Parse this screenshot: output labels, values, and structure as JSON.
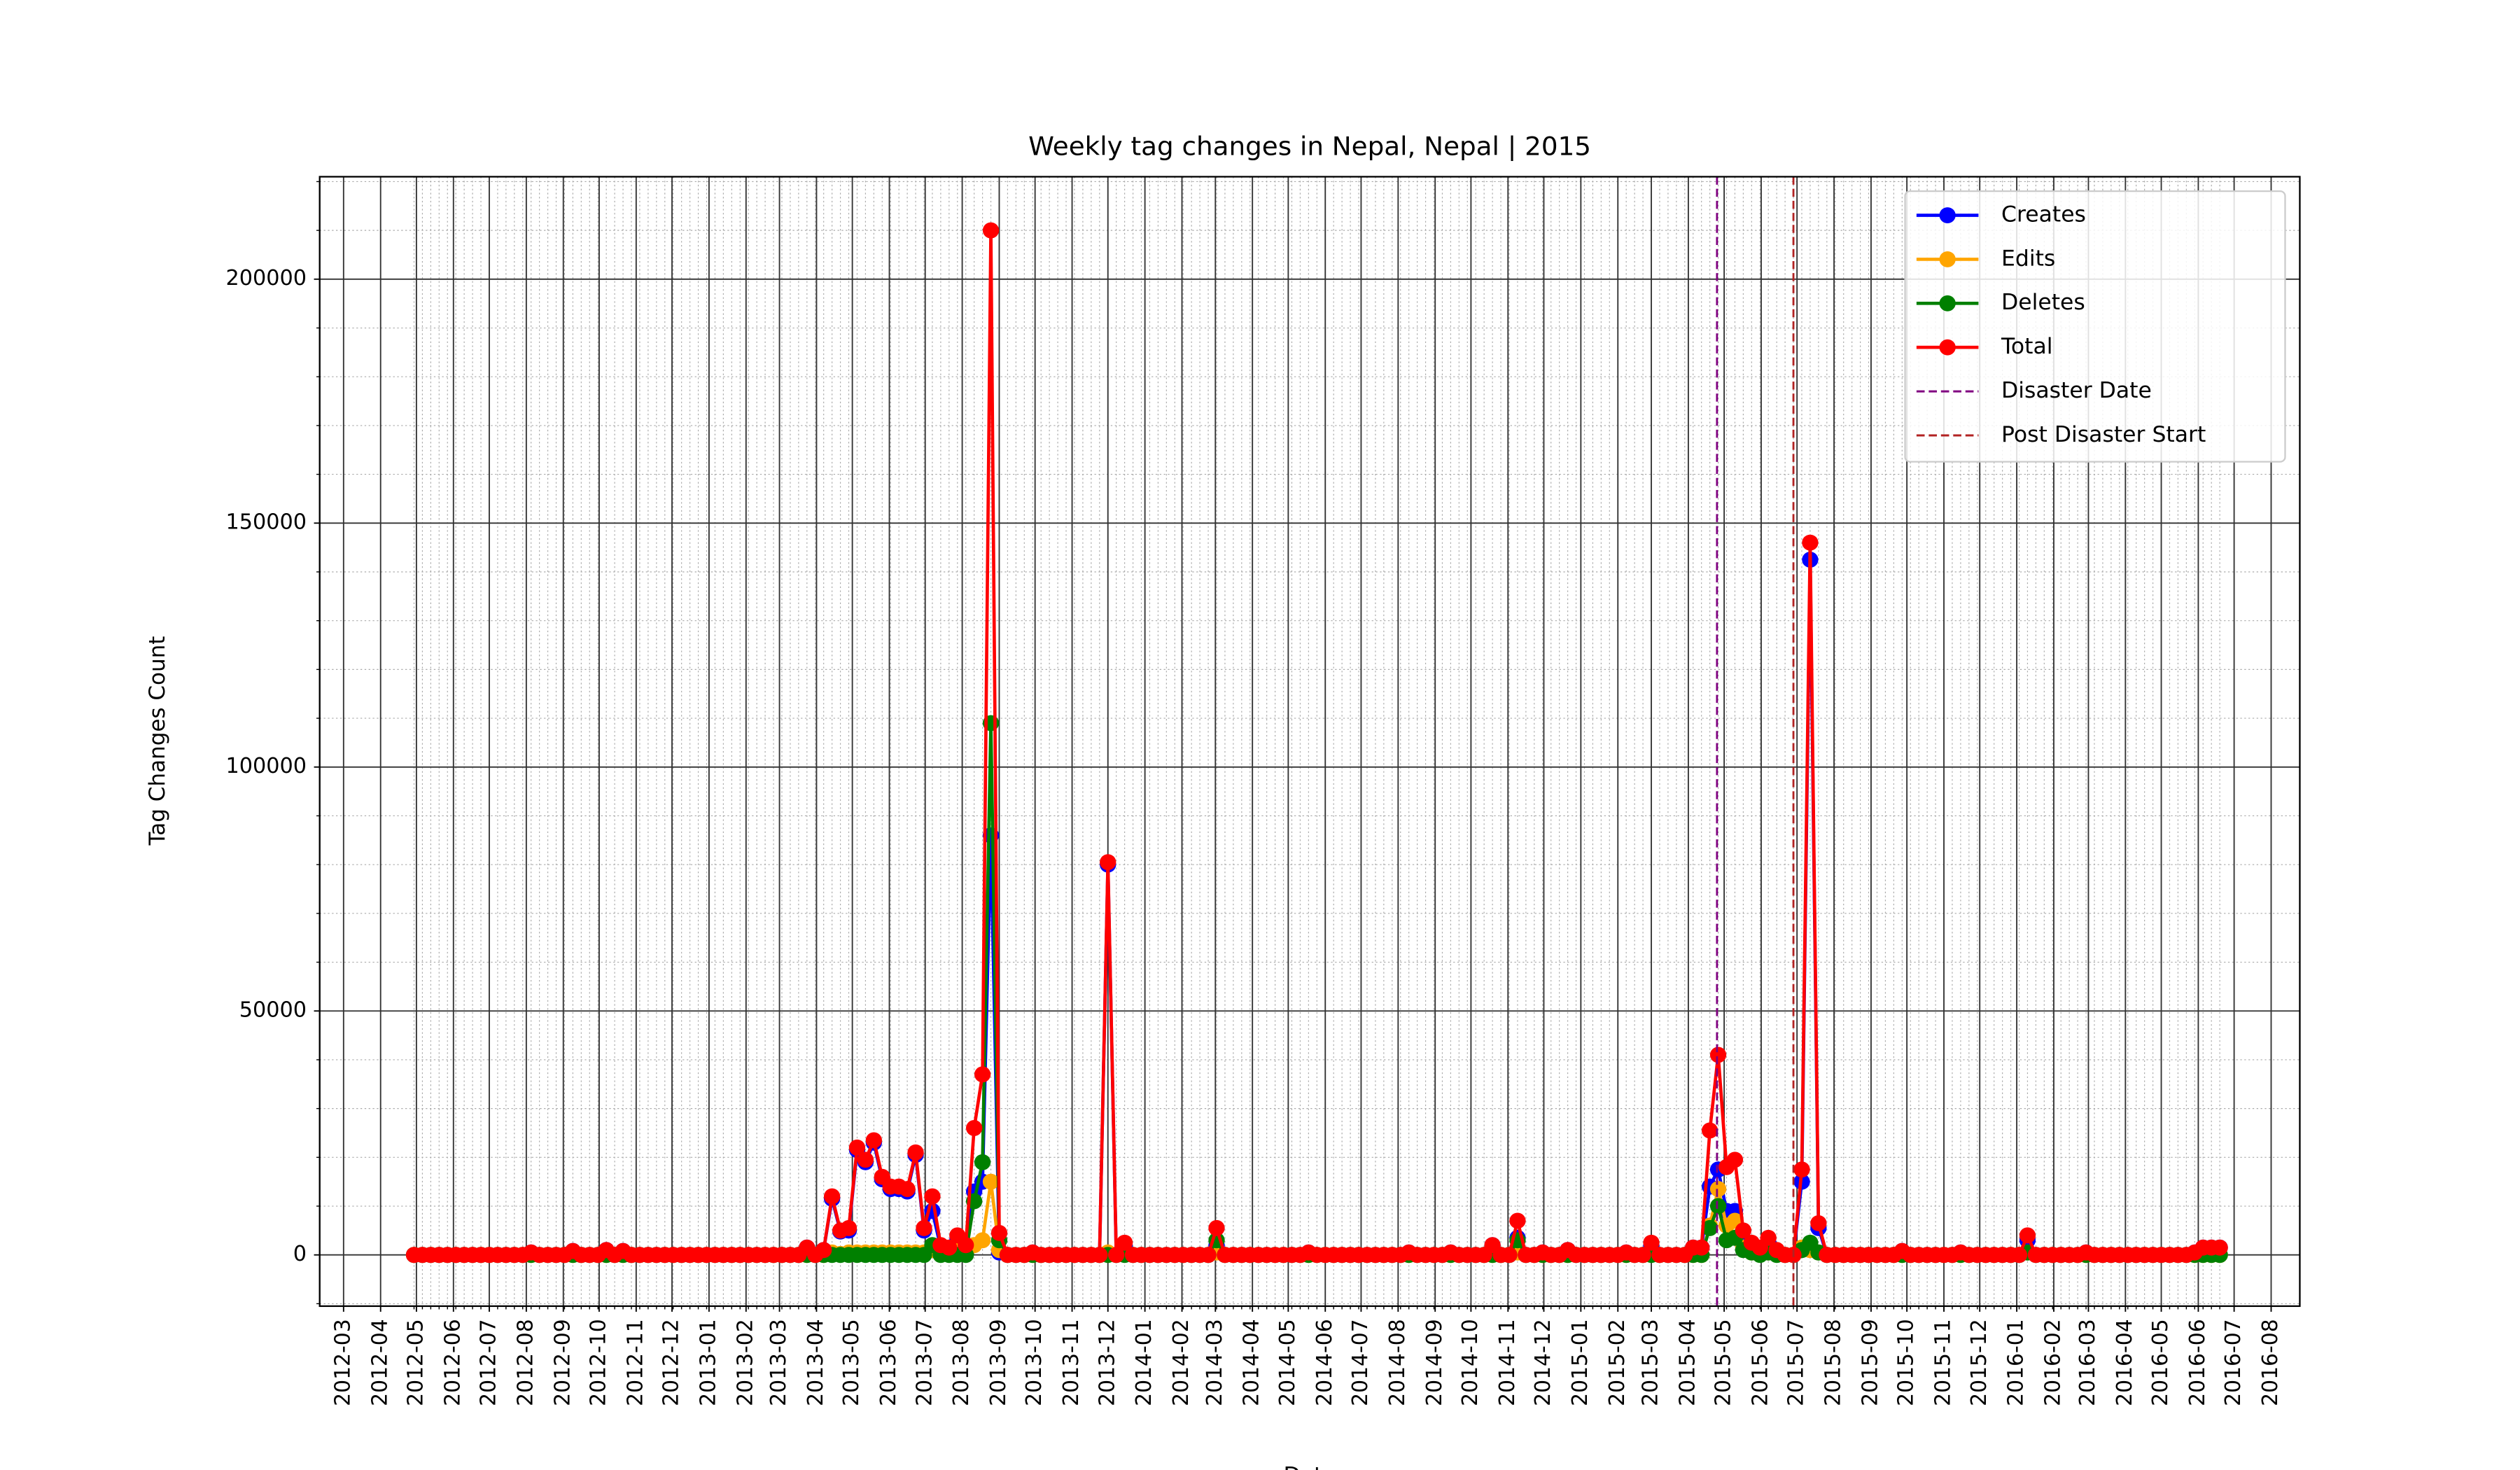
{
  "chart_data": {
    "type": "line",
    "title": "Weekly tag changes in Nepal, Nepal | 2015",
    "x_label": "Date",
    "y_label": "Tag Changes Count",
    "x": [
      "2012-04-29",
      "2012-05-06",
      "2012-05-13",
      "2012-05-20",
      "2012-05-27",
      "2012-06-03",
      "2012-06-10",
      "2012-06-17",
      "2012-06-24",
      "2012-07-01",
      "2012-07-08",
      "2012-07-15",
      "2012-07-22",
      "2012-07-29",
      "2012-08-05",
      "2012-08-12",
      "2012-08-19",
      "2012-08-26",
      "2012-09-02",
      "2012-09-09",
      "2012-09-16",
      "2012-09-23",
      "2012-09-30",
      "2012-10-07",
      "2012-10-14",
      "2012-10-21",
      "2012-10-28",
      "2012-11-04",
      "2012-11-11",
      "2012-11-18",
      "2012-11-25",
      "2012-12-02",
      "2012-12-09",
      "2012-12-16",
      "2012-12-23",
      "2012-12-30",
      "2013-01-06",
      "2013-01-13",
      "2013-01-20",
      "2013-01-27",
      "2013-02-03",
      "2013-02-10",
      "2013-02-17",
      "2013-02-24",
      "2013-03-03",
      "2013-03-10",
      "2013-03-17",
      "2013-03-24",
      "2013-03-31",
      "2013-04-07",
      "2013-04-14",
      "2013-04-21",
      "2013-04-28",
      "2013-05-05",
      "2013-05-12",
      "2013-05-19",
      "2013-05-26",
      "2013-06-02",
      "2013-06-09",
      "2013-06-16",
      "2013-06-23",
      "2013-06-30",
      "2013-07-07",
      "2013-07-14",
      "2013-07-21",
      "2013-07-28",
      "2013-08-04",
      "2013-08-11",
      "2013-08-18",
      "2013-08-25",
      "2013-09-01",
      "2013-09-08",
      "2013-09-15",
      "2013-09-22",
      "2013-09-29",
      "2013-10-06",
      "2013-10-13",
      "2013-10-20",
      "2013-10-27",
      "2013-11-03",
      "2013-11-10",
      "2013-11-17",
      "2013-11-24",
      "2013-12-01",
      "2013-12-08",
      "2013-12-15",
      "2013-12-22",
      "2013-12-29",
      "2014-01-05",
      "2014-01-12",
      "2014-01-19",
      "2014-01-26",
      "2014-02-02",
      "2014-02-09",
      "2014-02-16",
      "2014-02-23",
      "2014-03-02",
      "2014-03-09",
      "2014-03-16",
      "2014-03-23",
      "2014-03-30",
      "2014-04-06",
      "2014-04-13",
      "2014-04-20",
      "2014-04-27",
      "2014-05-04",
      "2014-05-11",
      "2014-05-18",
      "2014-05-25",
      "2014-06-01",
      "2014-06-08",
      "2014-06-15",
      "2014-06-22",
      "2014-06-29",
      "2014-07-06",
      "2014-07-13",
      "2014-07-20",
      "2014-07-27",
      "2014-08-03",
      "2014-08-10",
      "2014-08-17",
      "2014-08-24",
      "2014-08-31",
      "2014-09-07",
      "2014-09-14",
      "2014-09-21",
      "2014-09-28",
      "2014-10-05",
      "2014-10-12",
      "2014-10-19",
      "2014-10-26",
      "2014-11-02",
      "2014-11-09",
      "2014-11-16",
      "2014-11-23",
      "2014-11-30",
      "2014-12-07",
      "2014-12-14",
      "2014-12-21",
      "2014-12-28",
      "2015-01-04",
      "2015-01-11",
      "2015-01-18",
      "2015-01-25",
      "2015-02-01",
      "2015-02-08",
      "2015-02-15",
      "2015-02-22",
      "2015-03-01",
      "2015-03-08",
      "2015-03-15",
      "2015-03-22",
      "2015-03-29",
      "2015-04-05",
      "2015-04-12",
      "2015-04-19",
      "2015-04-26",
      "2015-05-03",
      "2015-05-10",
      "2015-05-17",
      "2015-05-24",
      "2015-05-31",
      "2015-06-07",
      "2015-06-14",
      "2015-06-21",
      "2015-06-28",
      "2015-07-05",
      "2015-07-12",
      "2015-07-19",
      "2015-07-26",
      "2015-08-02",
      "2015-08-09",
      "2015-08-16",
      "2015-08-23",
      "2015-08-30",
      "2015-09-06",
      "2015-09-13",
      "2015-09-20",
      "2015-09-27",
      "2015-10-04",
      "2015-10-11",
      "2015-10-18",
      "2015-10-25",
      "2015-11-01",
      "2015-11-08",
      "2015-11-15",
      "2015-11-22",
      "2015-11-29",
      "2015-12-06",
      "2015-12-13",
      "2015-12-20",
      "2015-12-27",
      "2016-01-03",
      "2016-01-10",
      "2016-01-17",
      "2016-01-24",
      "2016-01-31",
      "2016-02-07",
      "2016-02-14",
      "2016-02-21",
      "2016-02-28",
      "2016-03-06",
      "2016-03-13",
      "2016-03-20",
      "2016-03-27",
      "2016-04-03",
      "2016-04-10",
      "2016-04-17",
      "2016-04-24",
      "2016-05-01",
      "2016-05-08",
      "2016-05-15",
      "2016-05-22",
      "2016-05-29",
      "2016-06-05",
      "2016-06-12",
      "2016-06-19"
    ],
    "series": [
      {
        "name": "Creates",
        "color": "blue",
        "values": [
          0,
          0,
          0,
          0,
          0,
          0,
          0,
          0,
          0,
          0,
          0,
          0,
          0,
          0,
          500,
          0,
          0,
          0,
          0,
          800,
          0,
          0,
          0,
          1000,
          0,
          800,
          0,
          0,
          0,
          0,
          0,
          0,
          0,
          0,
          0,
          0,
          0,
          0,
          0,
          0,
          0,
          0,
          0,
          0,
          0,
          0,
          0,
          1500,
          0,
          1000,
          11500,
          4800,
          5000,
          21500,
          19000,
          23000,
          15500,
          13500,
          13500,
          13000,
          20500,
          5000,
          9000,
          1500,
          1000,
          3000,
          1500,
          13000,
          15000,
          86000,
          500,
          0,
          0,
          0,
          500,
          0,
          0,
          0,
          0,
          0,
          0,
          0,
          0,
          80000,
          0,
          2000,
          0,
          0,
          0,
          0,
          0,
          0,
          0,
          0,
          0,
          0,
          2000,
          0,
          0,
          0,
          0,
          0,
          0,
          0,
          0,
          0,
          0,
          500,
          0,
          0,
          0,
          0,
          0,
          0,
          0,
          0,
          0,
          0,
          0,
          500,
          0,
          0,
          0,
          0,
          500,
          0,
          0,
          0,
          0,
          2000,
          0,
          0,
          3500,
          0,
          0,
          500,
          0,
          0,
          1000,
          0,
          0,
          0,
          0,
          0,
          0,
          500,
          0,
          0,
          2000,
          0,
          0,
          0,
          0,
          1500,
          1500,
          14000,
          17500,
          9000,
          9000,
          2500,
          1500,
          1000,
          2500,
          500,
          0,
          0,
          15000,
          142500,
          5500,
          0,
          0,
          0,
          0,
          0,
          0,
          0,
          0,
          0,
          800,
          0,
          0,
          0,
          0,
          0,
          0,
          500,
          0,
          0,
          0,
          0,
          0,
          0,
          0,
          3000,
          0,
          0,
          0,
          0,
          0,
          0,
          500,
          0,
          0,
          0,
          0,
          0,
          0,
          0,
          0,
          0,
          0,
          0,
          0,
          500,
          1500,
          1500,
          1500
        ]
      },
      {
        "name": "Edits",
        "color": "orange",
        "values": [
          0,
          0,
          0,
          0,
          0,
          0,
          0,
          0,
          0,
          0,
          0,
          0,
          0,
          0,
          0,
          0,
          0,
          0,
          0,
          0,
          0,
          0,
          0,
          0,
          0,
          0,
          0,
          0,
          0,
          0,
          0,
          0,
          0,
          0,
          0,
          0,
          0,
          0,
          0,
          0,
          0,
          0,
          0,
          0,
          0,
          0,
          0,
          0,
          0,
          0,
          500,
          200,
          500,
          500,
          500,
          500,
          500,
          500,
          500,
          500,
          500,
          500,
          1000,
          500,
          500,
          1000,
          500,
          2000,
          3000,
          15000,
          1000,
          0,
          0,
          0,
          0,
          0,
          0,
          0,
          0,
          0,
          0,
          0,
          0,
          500,
          0,
          500,
          0,
          0,
          0,
          0,
          0,
          0,
          0,
          0,
          0,
          0,
          500,
          0,
          0,
          0,
          0,
          0,
          0,
          0,
          0,
          0,
          0,
          0,
          0,
          0,
          0,
          0,
          0,
          0,
          0,
          0,
          0,
          0,
          0,
          0,
          0,
          0,
          0,
          0,
          0,
          0,
          0,
          0,
          0,
          0,
          0,
          0,
          500,
          0,
          0,
          0,
          0,
          0,
          0,
          0,
          0,
          0,
          0,
          0,
          0,
          0,
          0,
          0,
          500,
          0,
          0,
          0,
          0,
          0,
          0,
          6000,
          13500,
          6000,
          7000,
          1500,
          500,
          500,
          500,
          500,
          0,
          0,
          1500,
          1000,
          500,
          0,
          0,
          0,
          0,
          0,
          0,
          0,
          0,
          0,
          0,
          0,
          0,
          0,
          0,
          0,
          0,
          0,
          0,
          0,
          0,
          0,
          0,
          0,
          0,
          500,
          0,
          0,
          0,
          0,
          0,
          0,
          0,
          0,
          0,
          0,
          0,
          0,
          0,
          0,
          0,
          0,
          0,
          0,
          0,
          0,
          0,
          0,
          0
        ]
      },
      {
        "name": "Deletes",
        "color": "green",
        "values": [
          0,
          0,
          0,
          0,
          0,
          0,
          0,
          0,
          0,
          0,
          0,
          0,
          0,
          0,
          0,
          0,
          0,
          0,
          0,
          0,
          0,
          0,
          0,
          0,
          0,
          0,
          0,
          0,
          0,
          0,
          0,
          0,
          0,
          0,
          0,
          0,
          0,
          0,
          0,
          0,
          0,
          0,
          0,
          0,
          0,
          0,
          0,
          0,
          0,
          0,
          0,
          0,
          0,
          0,
          0,
          0,
          0,
          0,
          0,
          0,
          0,
          0,
          2000,
          0,
          0,
          0,
          0,
          11000,
          19000,
          109000,
          3000,
          0,
          0,
          0,
          0,
          0,
          0,
          0,
          0,
          0,
          0,
          0,
          0,
          0,
          0,
          0,
          0,
          0,
          0,
          0,
          0,
          0,
          0,
          0,
          0,
          0,
          3000,
          0,
          0,
          0,
          0,
          0,
          0,
          0,
          0,
          0,
          0,
          0,
          0,
          0,
          0,
          0,
          0,
          0,
          0,
          0,
          0,
          0,
          0,
          0,
          0,
          0,
          0,
          0,
          0,
          0,
          0,
          0,
          0,
          0,
          0,
          0,
          3000,
          0,
          0,
          0,
          0,
          0,
          0,
          0,
          0,
          0,
          0,
          0,
          0,
          0,
          0,
          0,
          0,
          0,
          0,
          0,
          0,
          0,
          0,
          5500,
          10000,
          3000,
          3500,
          1000,
          500,
          0,
          500,
          0,
          0,
          0,
          1000,
          2500,
          500,
          0,
          0,
          0,
          0,
          0,
          0,
          0,
          0,
          0,
          0,
          0,
          0,
          0,
          0,
          0,
          0,
          0,
          0,
          0,
          0,
          0,
          0,
          0,
          0,
          500,
          0,
          0,
          0,
          0,
          0,
          0,
          0,
          0,
          0,
          0,
          0,
          0,
          0,
          0,
          0,
          0,
          0,
          0,
          0,
          0,
          0,
          0,
          0
        ]
      },
      {
        "name": "Total",
        "color": "red",
        "values": [
          0,
          0,
          0,
          0,
          0,
          0,
          0,
          0,
          0,
          0,
          0,
          0,
          0,
          0,
          500,
          0,
          0,
          0,
          0,
          800,
          0,
          0,
          0,
          1000,
          0,
          800,
          0,
          0,
          0,
          0,
          0,
          0,
          0,
          0,
          0,
          0,
          0,
          0,
          0,
          0,
          0,
          0,
          0,
          0,
          0,
          0,
          0,
          1500,
          0,
          1000,
          12000,
          5000,
          5500,
          22000,
          19500,
          23500,
          16000,
          14000,
          14000,
          13500,
          21000,
          5500,
          12000,
          2000,
          1500,
          4000,
          2000,
          26000,
          37000,
          210000,
          4500,
          0,
          0,
          0,
          500,
          0,
          0,
          0,
          0,
          0,
          0,
          0,
          0,
          80500,
          0,
          2500,
          0,
          0,
          0,
          0,
          0,
          0,
          0,
          0,
          0,
          0,
          5500,
          0,
          0,
          0,
          0,
          0,
          0,
          0,
          0,
          0,
          0,
          500,
          0,
          0,
          0,
          0,
          0,
          0,
          0,
          0,
          0,
          0,
          0,
          500,
          0,
          0,
          0,
          0,
          500,
          0,
          0,
          0,
          0,
          2000,
          0,
          0,
          7000,
          0,
          0,
          500,
          0,
          0,
          1000,
          0,
          0,
          0,
          0,
          0,
          0,
          500,
          0,
          0,
          2500,
          0,
          0,
          0,
          0,
          1500,
          1500,
          25500,
          41000,
          18000,
          19500,
          5000,
          2500,
          1500,
          3500,
          1000,
          0,
          0,
          17500,
          146000,
          6500,
          0,
          0,
          0,
          0,
          0,
          0,
          0,
          0,
          0,
          800,
          0,
          0,
          0,
          0,
          0,
          0,
          500,
          0,
          0,
          0,
          0,
          0,
          0,
          0,
          4000,
          0,
          0,
          0,
          0,
          0,
          0,
          500,
          0,
          0,
          0,
          0,
          0,
          0,
          0,
          0,
          0,
          0,
          0,
          0,
          500,
          1500,
          1500,
          1500
        ]
      }
    ],
    "vlines": [
      {
        "name": "Disaster Date",
        "color": "purple",
        "x": "2015-04-25"
      },
      {
        "name": "Post Disaster Start",
        "color": "#b22222",
        "x": "2015-06-28"
      }
    ],
    "xlim": [
      "2012-02-10",
      "2016-08-25"
    ],
    "xticks": [
      "2012-03",
      "2012-04",
      "2012-05",
      "2012-06",
      "2012-07",
      "2012-08",
      "2012-09",
      "2012-10",
      "2012-11",
      "2012-12",
      "2013-01",
      "2013-02",
      "2013-03",
      "2013-04",
      "2013-05",
      "2013-06",
      "2013-07",
      "2013-08",
      "2013-09",
      "2013-10",
      "2013-11",
      "2013-12",
      "2014-01",
      "2014-02",
      "2014-03",
      "2014-04",
      "2014-05",
      "2014-06",
      "2014-07",
      "2014-08",
      "2014-09",
      "2014-10",
      "2014-11",
      "2014-12",
      "2015-01",
      "2015-02",
      "2015-03",
      "2015-04",
      "2015-05",
      "2015-06",
      "2015-07",
      "2015-08",
      "2015-09",
      "2015-10",
      "2015-11",
      "2015-12",
      "2016-01",
      "2016-02",
      "2016-03",
      "2016-04",
      "2016-05",
      "2016-06",
      "2016-07",
      "2016-08"
    ],
    "ylim": [
      -10500,
      221000
    ],
    "yticks": [
      0,
      50000,
      100000,
      150000,
      200000
    ],
    "grid": true,
    "minor_grid": true,
    "legend": "upper right"
  }
}
